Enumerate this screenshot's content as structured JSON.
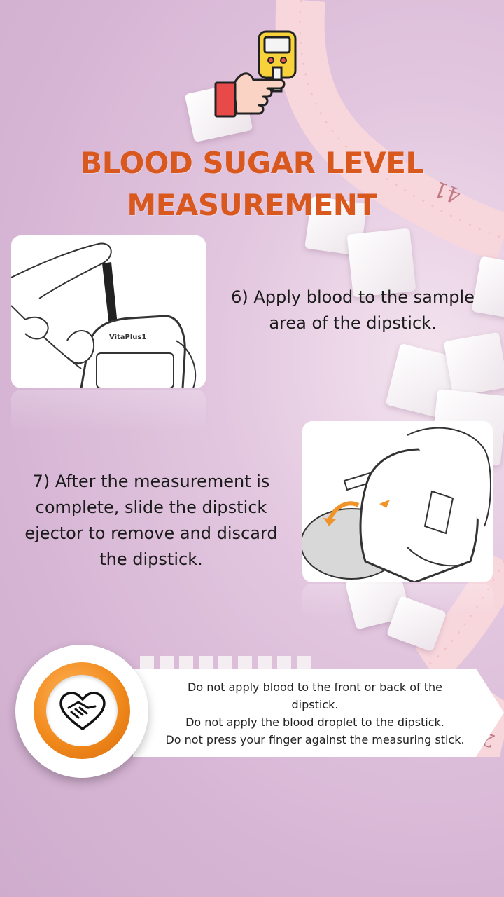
{
  "title": {
    "line1": "BLOOD SUGAR LEVEL",
    "line2": "MEASUREMENT"
  },
  "steps": [
    {
      "line1": "6) Apply blood to the sample",
      "line2": "area of the dipstick."
    },
    {
      "line1": "7) After the measurement is",
      "line2": "complete, slide the dipstick",
      "line3": "ejector to remove and discard",
      "line4": "the dipstick."
    }
  ],
  "device_label": "VitaPlus1",
  "note": {
    "line1": "Do not apply blood to the front or back of the",
    "line2": "dipstick.",
    "line3": "Do not apply the blood droplet to the dipstick.",
    "line4": "Do not press your finger against the measuring stick."
  },
  "tape_numbers": [
    "41",
    "2"
  ],
  "colors": {
    "title": "#d9581e",
    "accent_orange": "#f18a1c",
    "background": "#d6b5d4"
  },
  "icons": [
    "glucose-meter-hand-icon",
    "handshake-heart-icon"
  ]
}
